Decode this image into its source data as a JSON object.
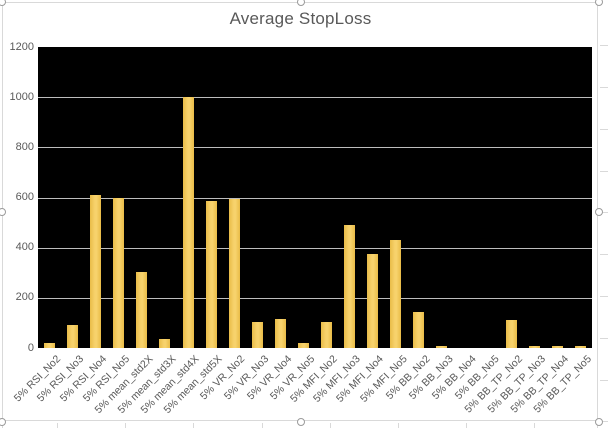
{
  "chart": {
    "title": "Average StopLoss"
  },
  "chart_data": {
    "type": "bar",
    "title": "Average StopLoss",
    "categories": [
      "5% RSI_No2",
      "5% RSI_No3",
      "5% RSI_No4",
      "5% RSI_No5",
      "5% mean_std2X",
      "5% mean_std3X",
      "5% mean_std4X",
      "5% mean_std5X",
      "5% VR_No2",
      "5% VR_No3",
      "5% VR_No4",
      "5% VR_No5",
      "5% MFI_No2",
      "5% MFI_No3",
      "5% MFI_No4",
      "5% MFI_No5",
      "5% BB_No2",
      "5% BB_No3",
      "5% BB_No4",
      "5% BB_No5",
      "5% BB_TP_No2",
      "5% BB_TP_No3",
      "5% BB_TP_No4",
      "5% BB_TP_No5"
    ],
    "values": [
      20,
      90,
      610,
      600,
      305,
      35,
      1000,
      585,
      595,
      105,
      115,
      20,
      105,
      490,
      375,
      430,
      145,
      10,
      0,
      0,
      110,
      8,
      8,
      8
    ],
    "xlabel": "",
    "ylabel": "",
    "ylim": [
      0,
      1200
    ],
    "yticks": [
      0,
      200,
      400,
      600,
      800,
      1000,
      1200
    ],
    "gridlines": "horizontal-major",
    "legend": "none",
    "plot_background": "#000000",
    "bar_color": "#F2C655"
  },
  "colors": {
    "bar": "#F2C655",
    "bar_edge": "#E9BC48",
    "bar_highlight": "#F7D26C",
    "plot_bg": "#000000",
    "gridline": "#BDBDBD",
    "axis_text": "#595959",
    "title_text": "#595959",
    "chart_border": "#D9D9D9",
    "handle_border": "#9B9B9B",
    "worksheet_line": "#D9D9D9"
  },
  "selection": {
    "state": "chart-selected",
    "handles": [
      "top-left",
      "top-center",
      "top-right",
      "middle-left",
      "middle-right",
      "bottom-left",
      "bottom-center",
      "bottom-right"
    ]
  }
}
